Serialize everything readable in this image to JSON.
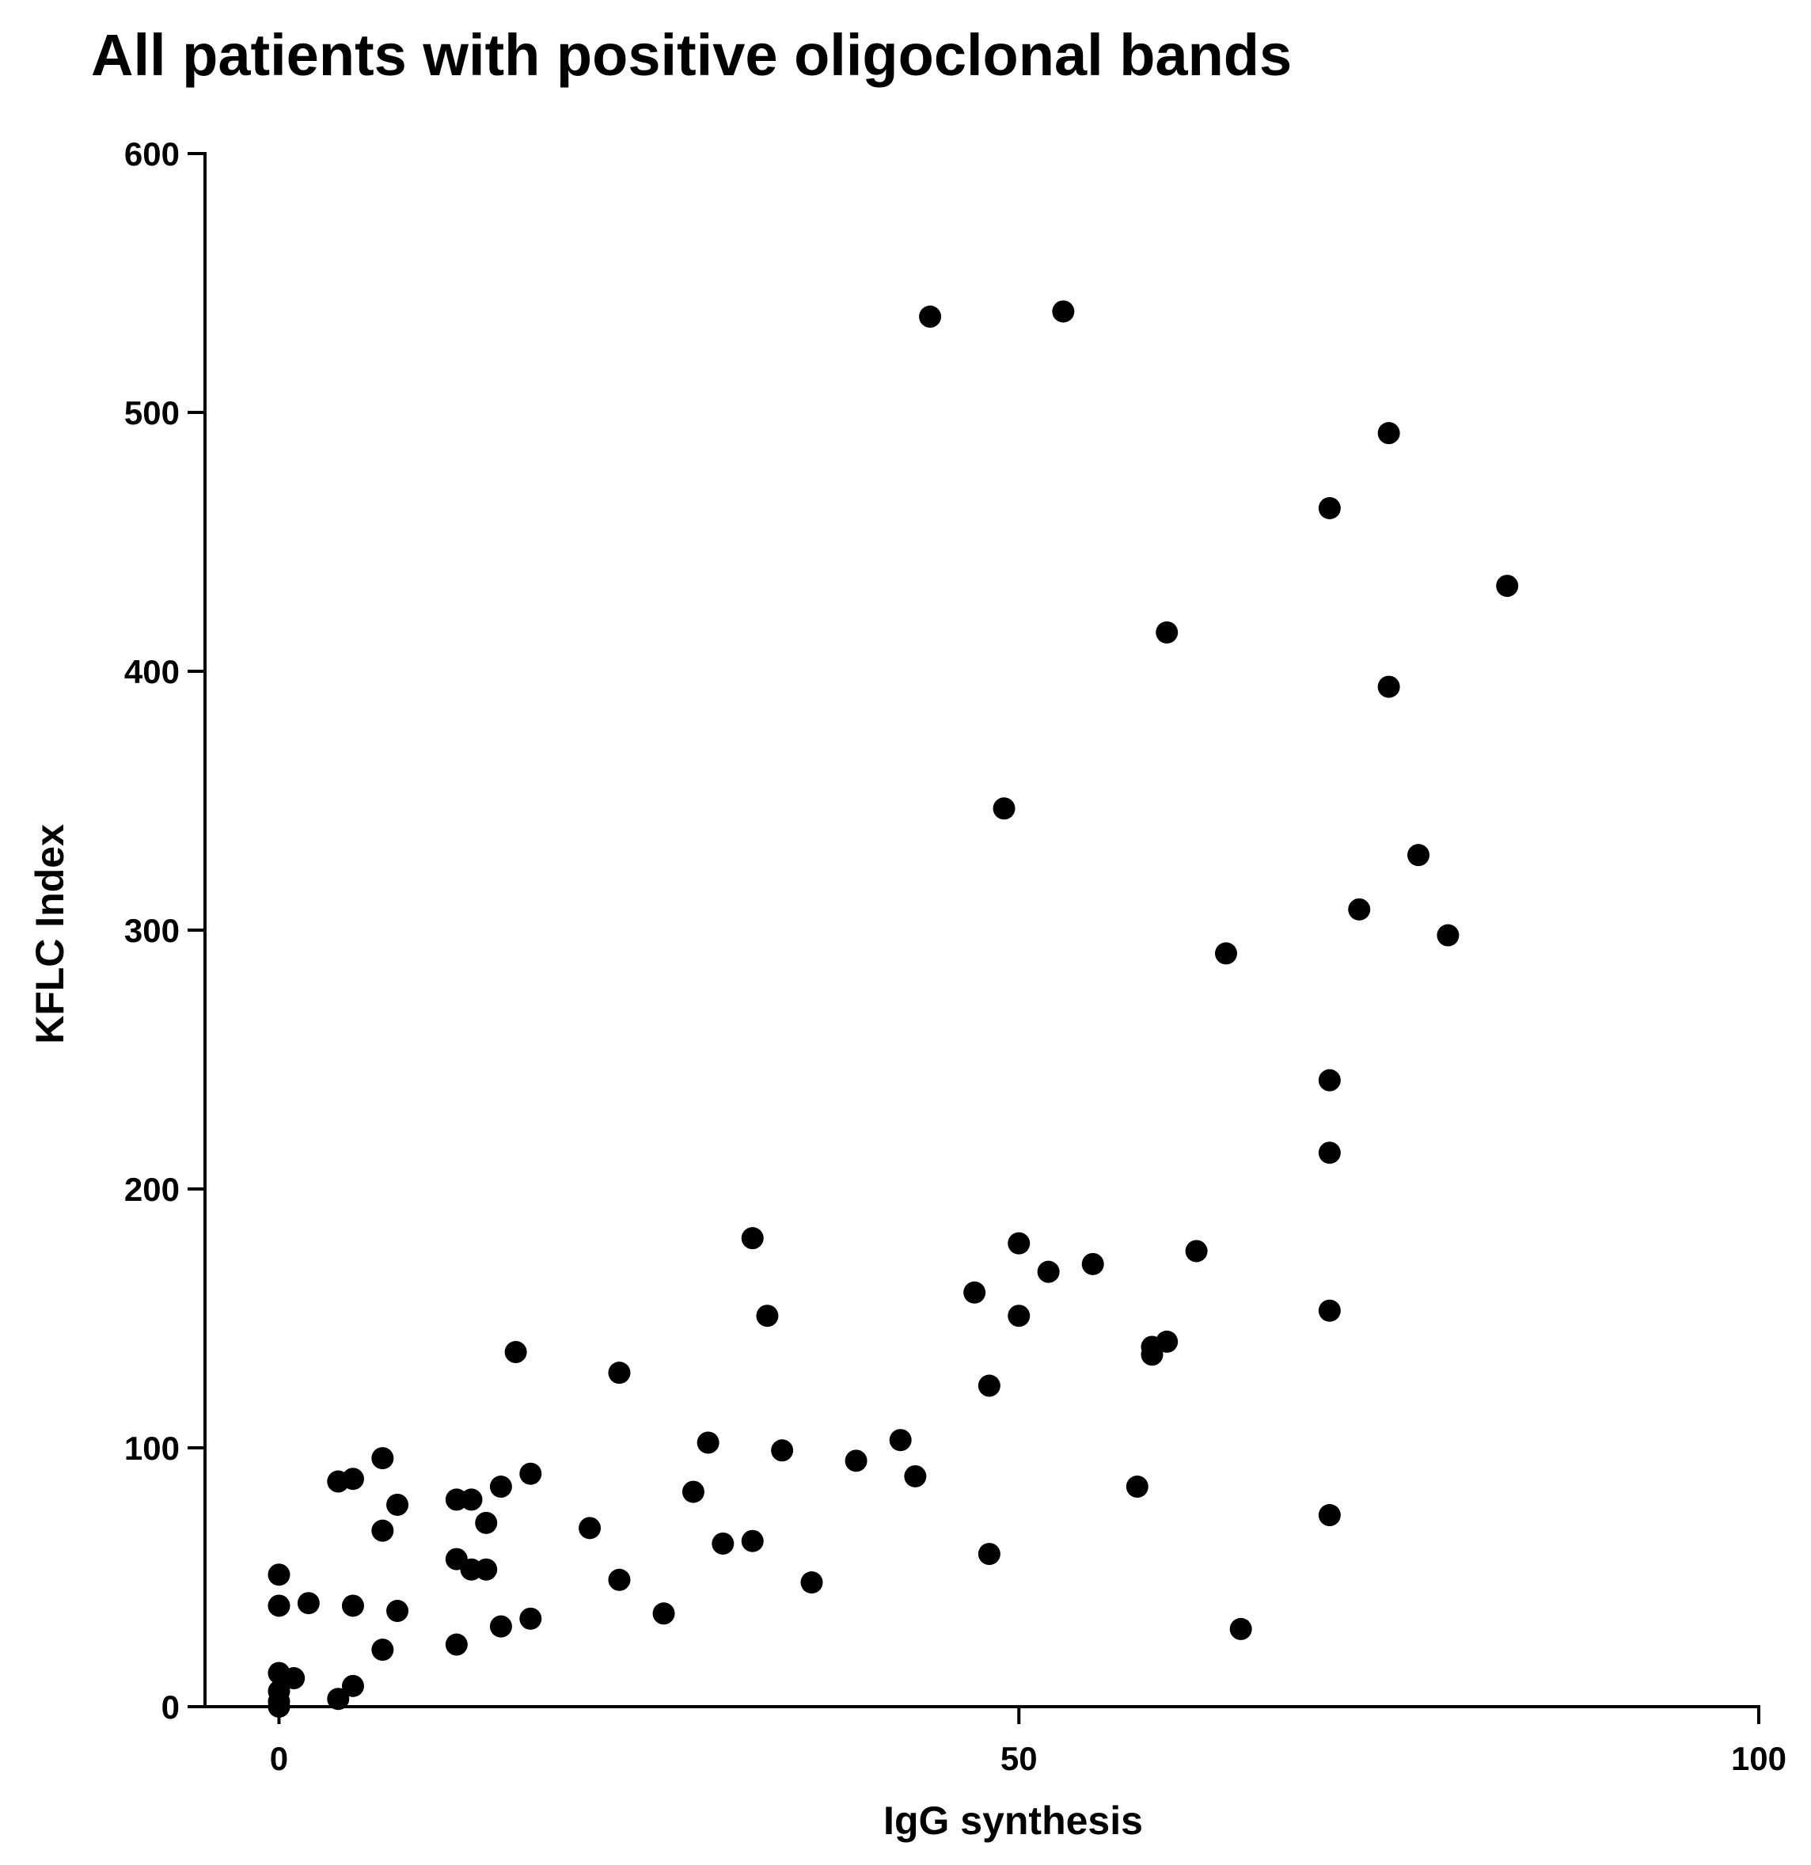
{
  "chart_data": {
    "type": "scatter",
    "title": "All patients with positive oligoclonal bands",
    "xlabel": "IgG synthesis",
    "ylabel": "KFLC Index",
    "xlim": [
      -5,
      100
    ],
    "ylim": [
      0,
      600
    ],
    "xticks": [
      "0",
      "50",
      "100"
    ],
    "yticks": [
      "0",
      "100",
      "200",
      "300",
      "400",
      "500",
      "600"
    ],
    "grid": false,
    "legend": "none",
    "colors": {
      "marker": "#000000",
      "axis": "#000000"
    },
    "series": [
      {
        "name": "patients",
        "points": [
          [
            0,
            0
          ],
          [
            0,
            2
          ],
          [
            0,
            6
          ],
          [
            0,
            13
          ],
          [
            0,
            39
          ],
          [
            0,
            51
          ],
          [
            1,
            11
          ],
          [
            2,
            40
          ],
          [
            4,
            3
          ],
          [
            4,
            87
          ],
          [
            5,
            8
          ],
          [
            5,
            39
          ],
          [
            5,
            88
          ],
          [
            7,
            22
          ],
          [
            7,
            68
          ],
          [
            7,
            96
          ],
          [
            8,
            37
          ],
          [
            8,
            78
          ],
          [
            12,
            24
          ],
          [
            12,
            57
          ],
          [
            12,
            80
          ],
          [
            13,
            53
          ],
          [
            13,
            80
          ],
          [
            14,
            53
          ],
          [
            14,
            71
          ],
          [
            15,
            31
          ],
          [
            15,
            85
          ],
          [
            16,
            137
          ],
          [
            17,
            34
          ],
          [
            17,
            90
          ],
          [
            21,
            69
          ],
          [
            23,
            49
          ],
          [
            23,
            129
          ],
          [
            26,
            36
          ],
          [
            28,
            83
          ],
          [
            29,
            102
          ],
          [
            30,
            63
          ],
          [
            32,
            64
          ],
          [
            32,
            181
          ],
          [
            33,
            151
          ],
          [
            34,
            99
          ],
          [
            36,
            48
          ],
          [
            39,
            95
          ],
          [
            42,
            103
          ],
          [
            43,
            89
          ],
          [
            44,
            537
          ],
          [
            47,
            160
          ],
          [
            48,
            59
          ],
          [
            48,
            124
          ],
          [
            49,
            347
          ],
          [
            50,
            151
          ],
          [
            50,
            179
          ],
          [
            52,
            168
          ],
          [
            53,
            539
          ],
          [
            55,
            171
          ],
          [
            58,
            85
          ],
          [
            59,
            136
          ],
          [
            59,
            139
          ],
          [
            60,
            141
          ],
          [
            60,
            415
          ],
          [
            62,
            176
          ],
          [
            64,
            291
          ],
          [
            65,
            30
          ],
          [
            71,
            74
          ],
          [
            71,
            153
          ],
          [
            71,
            214
          ],
          [
            71,
            242
          ],
          [
            71,
            463
          ],
          [
            73,
            308
          ],
          [
            75,
            394
          ],
          [
            75,
            492
          ],
          [
            77,
            329
          ],
          [
            79,
            298
          ],
          [
            83,
            433
          ]
        ]
      }
    ]
  }
}
